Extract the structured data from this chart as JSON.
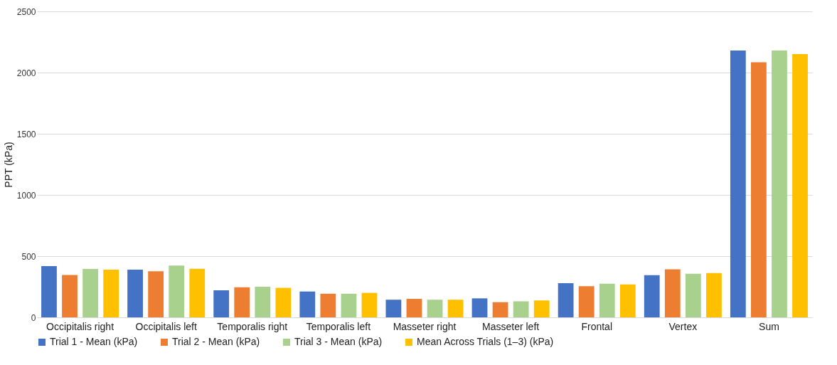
{
  "chart_data": {
    "type": "bar",
    "ylabel": "PPT (kPa)",
    "categories": [
      "Occipitalis right",
      "Occipitalis left",
      "Temporalis right",
      "Temporalis left",
      "Masseter right",
      "Masseter left",
      "Frontal",
      "Vertex",
      "Sum"
    ],
    "series": [
      {
        "name": "Trial 1 - Mean (kPa)",
        "color": "#4472c4",
        "values": [
          419,
          390,
          221,
          211,
          144,
          155,
          279,
          345,
          2180
        ]
      },
      {
        "name": "Trial 2 - Mean (kPa)",
        "color": "#ed7d31",
        "values": [
          346,
          377,
          246,
          193,
          151,
          124,
          255,
          393,
          2085
        ]
      },
      {
        "name": "Trial 3 - Mean (kPa)",
        "color": "#a9d18e",
        "values": [
          395,
          423,
          250,
          193,
          144,
          131,
          275,
          356,
          2180
        ]
      },
      {
        "name": "Mean Across Trials (1–3) (kPa)",
        "color": "#ffc000",
        "values": [
          390,
          397,
          241,
          200,
          144,
          138,
          269,
          362,
          2151
        ]
      }
    ],
    "ylim": [
      0,
      2500
    ],
    "yticks": [
      0,
      500,
      1000,
      1500,
      2000,
      2500
    ],
    "grid": "y",
    "legend": "bottom"
  }
}
